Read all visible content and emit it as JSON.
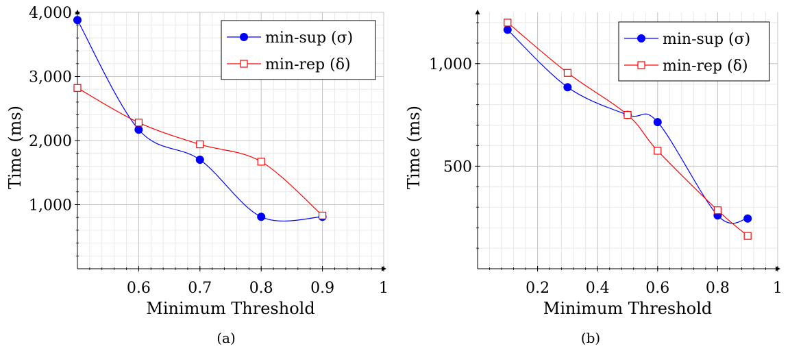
{
  "chart_data": [
    {
      "type": "line",
      "caption": "(a)",
      "xlabel": "Minimum Threshold",
      "ylabel": "Time (ms)",
      "xlim": [
        0.5,
        1.0
      ],
      "ylim": [
        0,
        4000
      ],
      "xticks": [
        0.6,
        0.7,
        0.8,
        0.9,
        1.0
      ],
      "xtick_labels": [
        "0.6",
        "0.7",
        "0.8",
        "0.9",
        "1"
      ],
      "yticks": [
        1000,
        2000,
        3000,
        4000
      ],
      "ytick_labels": [
        "1,000",
        "2,000",
        "3,000",
        "4,000"
      ],
      "grid": true,
      "legend_position": "top-right",
      "series": [
        {
          "name": "min-sup (σ)",
          "legend_label": "min-sup (σ)",
          "color": "#0000ff",
          "marker": "filled-circle",
          "x": [
            0.5,
            0.6,
            0.7,
            0.8,
            0.9
          ],
          "y": [
            3880,
            2170,
            1700,
            810,
            810
          ]
        },
        {
          "name": "min-rep (δ)",
          "legend_label": "min-rep (δ)",
          "color": "#ff0000",
          "marker": "open-square",
          "x": [
            0.5,
            0.6,
            0.7,
            0.8,
            0.9
          ],
          "y": [
            2820,
            2280,
            1940,
            1670,
            830
          ]
        }
      ]
    },
    {
      "type": "line",
      "caption": "(b)",
      "xlabel": "Minimum Threshold",
      "ylabel": "Time (ms)",
      "xlim": [
        0.0,
        1.0
      ],
      "ylim": [
        0,
        1250
      ],
      "xticks": [
        0.2,
        0.4,
        0.6,
        0.8,
        1.0
      ],
      "xtick_labels": [
        "0.2",
        "0.4",
        "0.6",
        "0.8",
        "1"
      ],
      "yticks": [
        500,
        1000
      ],
      "ytick_labels": [
        "500",
        "1,000"
      ],
      "grid": true,
      "legend_position": "top-right",
      "series": [
        {
          "name": "min-sup (σ)",
          "legend_label": "min-sup (σ)",
          "color": "#0000ff",
          "marker": "filled-circle",
          "x": [
            0.1,
            0.3,
            0.5,
            0.6,
            0.8,
            0.9
          ],
          "y": [
            1165,
            885,
            750,
            715,
            260,
            245
          ]
        },
        {
          "name": "min-rep (δ)",
          "legend_label": "min-rep (δ)",
          "color": "#ff0000",
          "marker": "open-square",
          "x": [
            0.1,
            0.3,
            0.5,
            0.6,
            0.8,
            0.9
          ],
          "y": [
            1200,
            955,
            750,
            575,
            285,
            160
          ]
        }
      ]
    }
  ]
}
